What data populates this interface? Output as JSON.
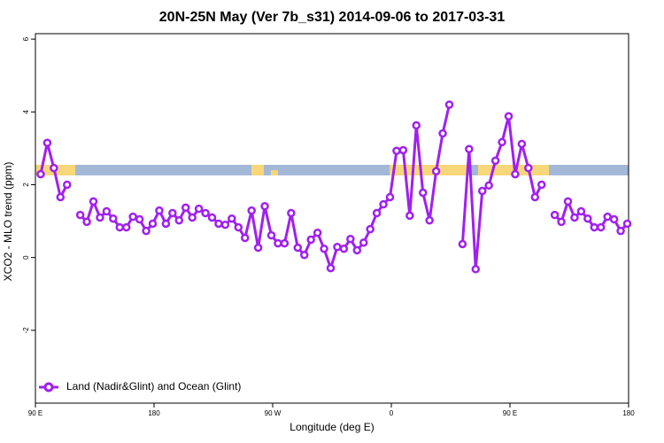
{
  "chart_data": {
    "type": "line",
    "title": "20N-25N May (Ver 7b_s31)   2014-09-06 to 2017-03-31",
    "xlabel": "Longitude (deg E)",
    "ylabel": "XCO2 - MLO trend (ppm)",
    "x": [
      94,
      99,
      104,
      109,
      114,
      119,
      124,
      129,
      134,
      139,
      144,
      149,
      154,
      159,
      164,
      169,
      174,
      179,
      184,
      189,
      194,
      199,
      204,
      209,
      214,
      219,
      224,
      229,
      234,
      239,
      244,
      249,
      254,
      259,
      264,
      269,
      274,
      279,
      284,
      289,
      294,
      299,
      304,
      309,
      314,
      319,
      324,
      329,
      334,
      339,
      344,
      349,
      354,
      359,
      364,
      369,
      374,
      379,
      384,
      389,
      394,
      399,
      404,
      409,
      414,
      419,
      424,
      429,
      434,
      439,
      444,
      449,
      454,
      459,
      464,
      469,
      474,
      479,
      484,
      489,
      494,
      499,
      504,
      509,
      514,
      519,
      524,
      529,
      534,
      539
    ],
    "series": [
      {
        "name": "Land (Nadir&Glint) and Ocean (Glint)",
        "color": "#a020f0",
        "values": [
          2.29,
          3.15,
          2.46,
          1.66,
          2.0,
          null,
          1.17,
          0.98,
          1.54,
          1.1,
          1.27,
          1.07,
          0.83,
          0.83,
          1.12,
          1.05,
          0.73,
          0.93,
          1.29,
          0.93,
          1.22,
          1.02,
          1.37,
          1.1,
          1.34,
          1.22,
          1.1,
          0.93,
          0.9,
          1.07,
          0.83,
          0.54,
          1.29,
          0.27,
          1.41,
          0.61,
          0.39,
          0.39,
          1.22,
          0.27,
          0.07,
          0.49,
          0.68,
          0.24,
          -0.29,
          0.29,
          0.24,
          0.51,
          0.2,
          0.41,
          0.78,
          1.22,
          1.46,
          1.66,
          2.93,
          2.95,
          1.15,
          3.63,
          1.78,
          1.02,
          2.37,
          3.41,
          4.2,
          null,
          0.37,
          2.98,
          -0.32,
          1.83,
          1.98,
          2.66,
          3.17,
          3.88,
          2.29,
          3.12,
          2.46,
          1.66,
          2.0,
          null,
          1.17,
          0.98,
          1.54,
          1.1,
          1.27,
          1.07,
          0.83,
          0.83,
          1.12,
          1.05,
          0.73,
          0.93
        ]
      }
    ],
    "xlim": [
      90,
      540
    ],
    "xticks": [
      {
        "value": 90,
        "label": "90 E"
      },
      180,
      {
        "value": 270,
        "label": "90 W"
      },
      {
        "value": 360,
        "label": "0"
      },
      {
        "value": 450,
        "label": "90 E"
      },
      {
        "value": 540,
        "label": "180"
      }
    ],
    "ylim": [
      -4.0,
      6.15
    ],
    "yticks": [
      -2,
      0,
      2,
      4,
      6
    ],
    "legend": "bottom-left"
  }
}
